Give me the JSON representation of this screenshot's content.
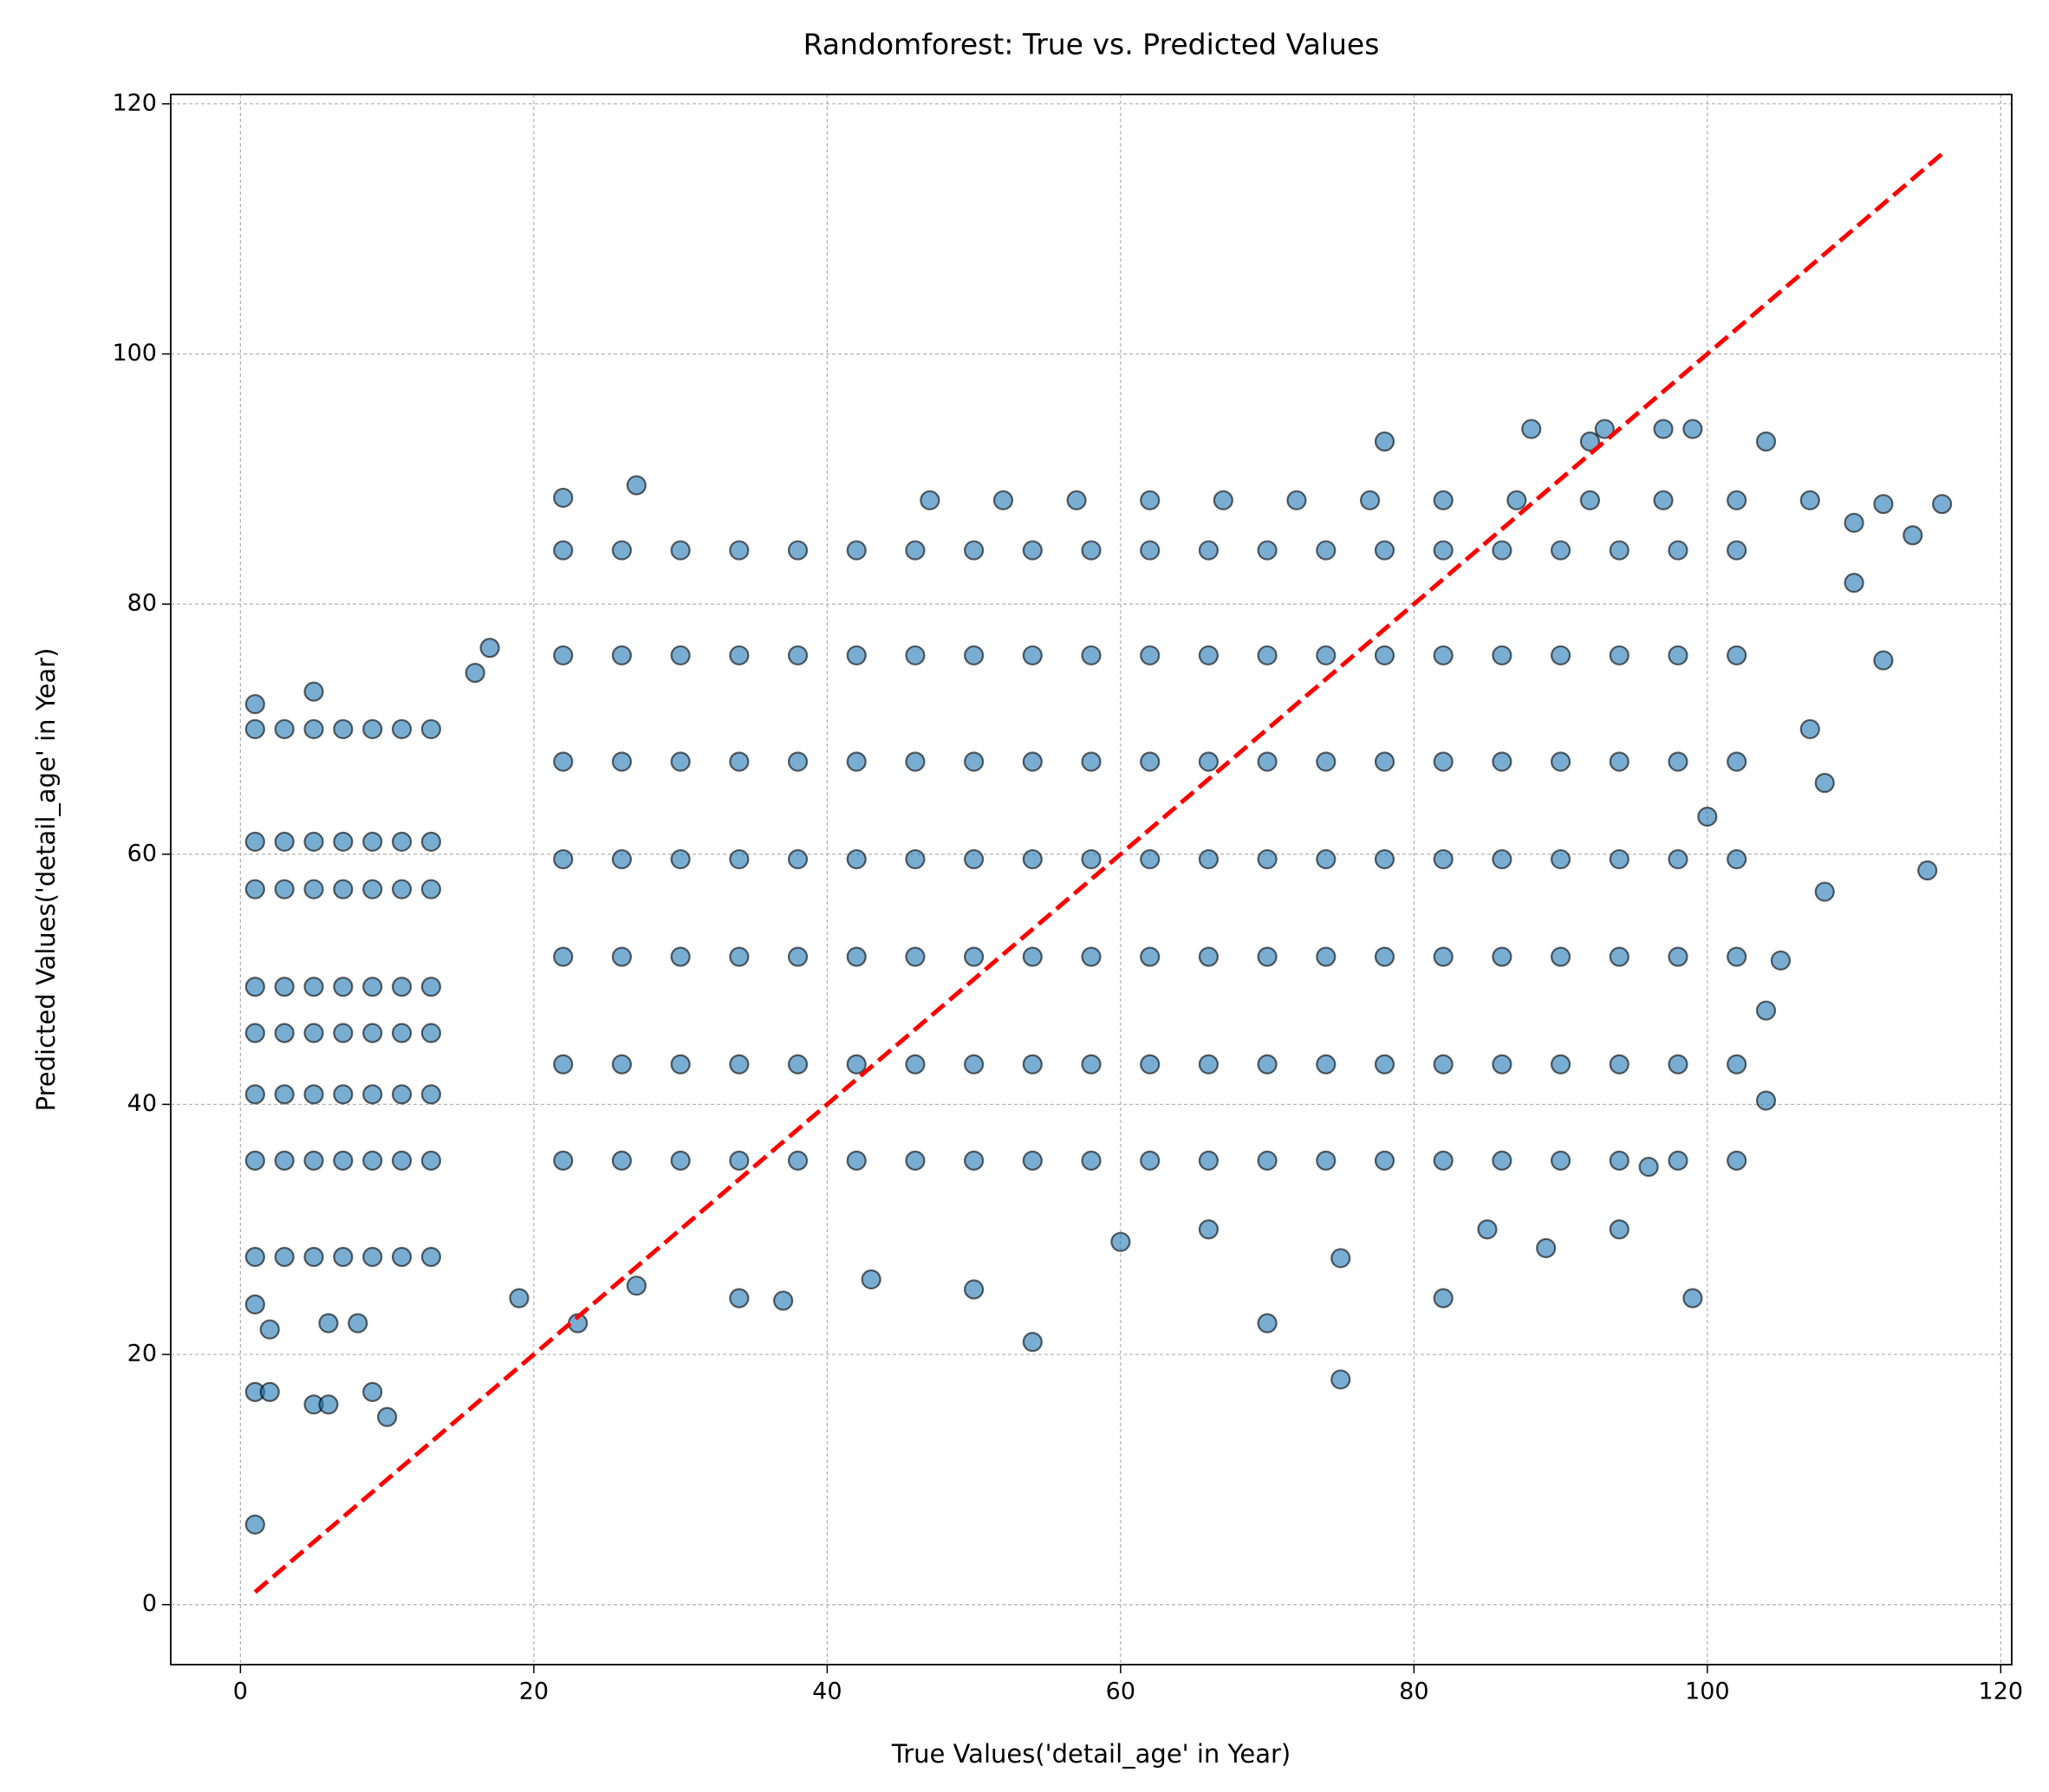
{
  "chart_data": {
    "type": "scatter",
    "title": "Randomforest: True vs. Predicted Values",
    "xlabel": "True Values('detail_age' in Year)",
    "ylabel": "Predicted Values('detail_age' in Year)",
    "color": "#1f77b4",
    "edgecolor": "#000000",
    "alpha": 0.6,
    "grid": true,
    "xlim": [
      -4.75,
      120.75
    ],
    "ylim": [
      -4.8,
      120.75
    ],
    "xticks": [
      0,
      20,
      40,
      60,
      80,
      100,
      120
    ],
    "yticks": [
      0,
      20,
      40,
      60,
      80,
      100,
      120
    ],
    "reference_line": {
      "x": [
        1,
        116
      ],
      "y": [
        1,
        116
      ],
      "color": "#ff0000",
      "dashed": true
    },
    "x": [
      22,
      26,
      30,
      34,
      38,
      42,
      46,
      50,
      54,
      58,
      62,
      66,
      70,
      74,
      78,
      82,
      86,
      90,
      94,
      98,
      102,
      22,
      26,
      30,
      34,
      38,
      42,
      46,
      50,
      54,
      58,
      62,
      66,
      70,
      74,
      78,
      82,
      86,
      90,
      94,
      98,
      102,
      22,
      26,
      30,
      34,
      38,
      42,
      46,
      50,
      54,
      58,
      62,
      66,
      70,
      74,
      78,
      82,
      86,
      90,
      94,
      98,
      102,
      22,
      26,
      30,
      34,
      38,
      42,
      46,
      50,
      54,
      58,
      62,
      66,
      70,
      74,
      78,
      82,
      86,
      90,
      94,
      98,
      102,
      22,
      26,
      30,
      34,
      38,
      42,
      46,
      50,
      54,
      58,
      62,
      66,
      70,
      74,
      78,
      82,
      86,
      90,
      94,
      98,
      102,
      22,
      26,
      30,
      34,
      38,
      42,
      46,
      50,
      54,
      58,
      62,
      66,
      70,
      74,
      78,
      82,
      86,
      90,
      94,
      98,
      102,
      22,
      26,
      30,
      34,
      38,
      42,
      46,
      50,
      54,
      58,
      62,
      66,
      70,
      74,
      78,
      82,
      86,
      90,
      94,
      98,
      102,
      1,
      3,
      5,
      7,
      9,
      11,
      13,
      1,
      3,
      5,
      7,
      9,
      11,
      13,
      1,
      3,
      5,
      7,
      9,
      11,
      13,
      1,
      3,
      5,
      7,
      9,
      11,
      13,
      1,
      3,
      5,
      7,
      9,
      11,
      13,
      1,
      3,
      5,
      7,
      9,
      11,
      13,
      1,
      3,
      5,
      7,
      9,
      11,
      13,
      1,
      3,
      5,
      7,
      9,
      11,
      13,
      1,
      1,
      2,
      5,
      6,
      9,
      10,
      1,
      2,
      6,
      8,
      1,
      5,
      17,
      16,
      27,
      22,
      54,
      75,
      70,
      82,
      99,
      115,
      104,
      108,
      110,
      112,
      114,
      116,
      112,
      104,
      88,
      93,
      97,
      99,
      78,
      92,
      50,
      37,
      43,
      60,
      66,
      85,
      94,
      96,
      104,
      105,
      100,
      89,
      75,
      19,
      23,
      27,
      34,
      110,
      107,
      108,
      47,
      52,
      57,
      62,
      67,
      72,
      77,
      82,
      87,
      92,
      97,
      102,
      107
    ],
    "y": [
      35.5,
      35.5,
      35.5,
      35.5,
      35.5,
      35.5,
      35.5,
      35.5,
      35.5,
      35.5,
      35.5,
      35.5,
      35.5,
      35.5,
      35.5,
      35.5,
      35.5,
      35.5,
      35.5,
      35.5,
      35.5,
      43.2,
      43.2,
      43.2,
      43.2,
      43.2,
      43.2,
      43.2,
      43.2,
      43.2,
      43.2,
      43.2,
      43.2,
      43.2,
      43.2,
      43.2,
      43.2,
      43.2,
      43.2,
      43.2,
      43.2,
      43.2,
      51.8,
      51.8,
      51.8,
      51.8,
      51.8,
      51.8,
      51.8,
      51.8,
      51.8,
      51.8,
      51.8,
      51.8,
      51.8,
      51.8,
      51.8,
      51.8,
      51.8,
      51.8,
      51.8,
      51.8,
      51.8,
      59.6,
      59.6,
      59.6,
      59.6,
      59.6,
      59.6,
      59.6,
      59.6,
      59.6,
      59.6,
      59.6,
      59.6,
      59.6,
      59.6,
      59.6,
      59.6,
      59.6,
      59.6,
      59.6,
      59.6,
      59.6,
      67.4,
      67.4,
      67.4,
      67.4,
      67.4,
      67.4,
      67.4,
      67.4,
      67.4,
      67.4,
      67.4,
      67.4,
      67.4,
      67.4,
      67.4,
      67.4,
      67.4,
      67.4,
      67.4,
      67.4,
      67.4,
      75.9,
      75.9,
      75.9,
      75.9,
      75.9,
      75.9,
      75.9,
      75.9,
      75.9,
      75.9,
      75.9,
      75.9,
      75.9,
      75.9,
      75.9,
      75.9,
      75.9,
      75.9,
      75.9,
      75.9,
      75.9,
      84.3,
      84.3,
      84.3,
      84.3,
      84.3,
      84.3,
      84.3,
      84.3,
      84.3,
      84.3,
      84.3,
      84.3,
      84.3,
      84.3,
      84.3,
      84.3,
      84.3,
      84.3,
      84.3,
      84.3,
      84.3,
      27.8,
      27.8,
      27.8,
      27.8,
      27.8,
      27.8,
      27.8,
      35.5,
      35.5,
      35.5,
      35.5,
      35.5,
      35.5,
      35.5,
      40.8,
      40.8,
      40.8,
      40.8,
      40.8,
      40.8,
      40.8,
      45.7,
      45.7,
      45.7,
      45.7,
      45.7,
      45.7,
      45.7,
      49.4,
      49.4,
      49.4,
      49.4,
      49.4,
      49.4,
      49.4,
      57.2,
      57.2,
      57.2,
      57.2,
      57.2,
      57.2,
      57.2,
      61,
      61,
      61,
      61,
      61,
      61,
      61,
      70,
      70,
      70,
      70,
      70,
      70,
      70,
      6.4,
      17,
      17,
      16,
      16,
      17,
      15,
      24,
      22,
      22.5,
      22.5,
      72,
      73,
      76.5,
      74.5,
      89.5,
      88.5,
      21,
      18,
      22.5,
      24.5,
      24.5,
      58.7,
      40.3,
      65.7,
      81.7,
      75.5,
      85.5,
      88,
      88,
      93,
      94,
      94,
      94,
      94,
      93,
      93,
      25.2,
      24.3,
      26,
      29,
      30,
      30,
      30,
      35,
      47.5,
      51.5,
      63,
      28.5,
      27.7,
      24.5,
      22.5,
      25.5,
      24.5,
      86.5,
      70,
      57,
      88.3,
      88.3,
      88.3,
      88.3,
      88.3,
      88.3,
      88.3,
      88.3,
      88.3,
      88.3,
      88.3,
      88.3,
      88.3
    ]
  }
}
